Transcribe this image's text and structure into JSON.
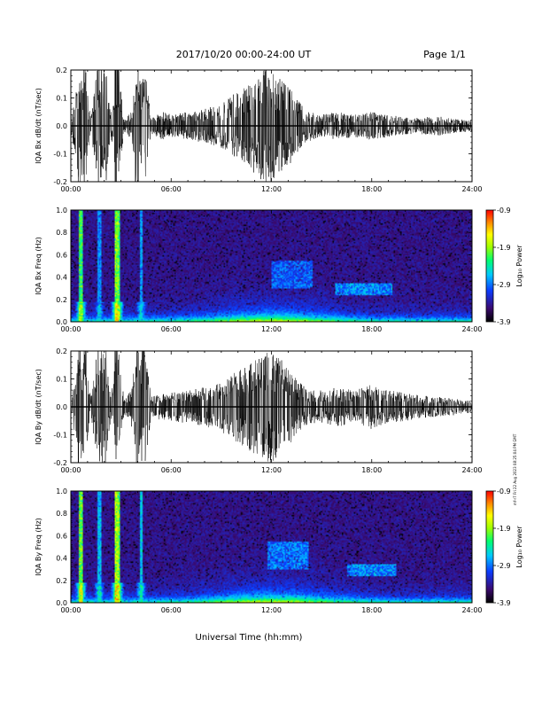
{
  "header": {
    "date_range": "2017/10/20  00:00-24:00 UT",
    "page": "Page 1/1"
  },
  "x_axis": {
    "title": "Universal Time (hh:mm)",
    "ticks": [
      "00:00",
      "06:00",
      "12:00",
      "18:00",
      "24:00"
    ],
    "range_hours": [
      0,
      24
    ]
  },
  "side_stamp": "mf-r7 Fri 22 Aug 2023 08:25:04 PM GMT",
  "colors": {
    "waveform": "#000000",
    "spectrogram_background": "#280b44",
    "colorbar": [
      "#000000",
      "#3a0a6e",
      "#0b3cff",
      "#00c8ff",
      "#00ff70",
      "#a0ff00",
      "#ffff00",
      "#ff8800",
      "#ff0000"
    ]
  },
  "chart_data": [
    {
      "type": "line",
      "id": "bx-dbdt",
      "ylabel": "IQA Bx dB/dt (nT/sec)",
      "yticks": [
        "0.2",
        "0.1",
        "0.0",
        "-0.1",
        "-0.2"
      ],
      "ylim": [
        -0.2,
        0.2
      ],
      "x_unit": "hours UT",
      "envelope": {
        "x": [
          0,
          0.5,
          0.8,
          1.2,
          1.6,
          2.0,
          2.4,
          2.8,
          3.2,
          3.6,
          4.0,
          4.4,
          4.8,
          5.5,
          6,
          7,
          8,
          9,
          9.5,
          10,
          10.5,
          11,
          11.5,
          12,
          12.5,
          13,
          13.5,
          14,
          14.5,
          15,
          16,
          17,
          18,
          19,
          20,
          21,
          22,
          23,
          24
        ],
        "y": [
          0.02,
          0.2,
          0.2,
          0.03,
          0.22,
          0.22,
          0.04,
          0.22,
          0.02,
          0.05,
          0.22,
          0.22,
          0.03,
          0.05,
          0.04,
          0.05,
          0.06,
          0.08,
          0.1,
          0.13,
          0.15,
          0.17,
          0.2,
          0.22,
          0.17,
          0.15,
          0.1,
          0.06,
          0.05,
          0.04,
          0.05,
          0.04,
          0.05,
          0.04,
          0.03,
          0.03,
          0.035,
          0.025,
          0.02
        ]
      },
      "burst_hours": [
        0.5,
        0.85,
        1.65,
        2.1,
        2.7,
        2.85,
        3.9,
        4.3
      ]
    },
    {
      "type": "heatmap",
      "id": "bx-freq",
      "ylabel": "IQA Bx Freq (Hz)",
      "yticks": [
        "1.0",
        "0.8",
        "0.6",
        "0.4",
        "0.2",
        "0.0"
      ],
      "ylim": [
        0.0,
        1.0
      ],
      "colorbar": {
        "label": "Log₁₀ Power",
        "ticks": [
          "-0.9",
          "-1.9",
          "-2.9",
          "-3.9"
        ],
        "range": [
          -3.9,
          -0.9
        ]
      },
      "features": [
        {
          "kind": "vertical-band",
          "hour": 0.6,
          "power": -1.5
        },
        {
          "kind": "vertical-band",
          "hour": 1.7,
          "power": -2.4
        },
        {
          "kind": "vertical-band",
          "hour": 2.75,
          "power": -1.2
        },
        {
          "kind": "vertical-band",
          "hour": 2.85,
          "power": -1.6
        },
        {
          "kind": "vertical-band",
          "hour": 4.2,
          "power": -2.3
        },
        {
          "kind": "patch",
          "hour_start": 12,
          "hour_end": 14.5,
          "freq_low": 0.3,
          "freq_high": 0.55,
          "power": -2.7
        },
        {
          "kind": "patch",
          "hour_start": 15.8,
          "hour_end": 19.2,
          "freq_low": 0.24,
          "freq_high": 0.34,
          "power": -2.5
        }
      ]
    },
    {
      "type": "line",
      "id": "by-dbdt",
      "ylabel": "IQA By dB/dt (nT/sec)",
      "yticks": [
        "0.2",
        "0.1",
        "0.0",
        "-0.1",
        "-0.2"
      ],
      "ylim": [
        -0.2,
        0.2
      ],
      "x_unit": "hours UT",
      "envelope": {
        "x": [
          0,
          0.5,
          0.8,
          1.2,
          1.6,
          2.0,
          2.4,
          2.8,
          3.2,
          3.6,
          4.0,
          4.4,
          4.8,
          5.5,
          6,
          7,
          8,
          9,
          9.5,
          10,
          10.5,
          11,
          11.5,
          12,
          12.5,
          13,
          13.5,
          14,
          14.5,
          15,
          16,
          17,
          18,
          19,
          20,
          21,
          22,
          23,
          24
        ],
        "y": [
          0.02,
          0.2,
          0.2,
          0.03,
          0.22,
          0.22,
          0.04,
          0.22,
          0.03,
          0.06,
          0.22,
          0.22,
          0.04,
          0.05,
          0.05,
          0.06,
          0.07,
          0.09,
          0.11,
          0.13,
          0.15,
          0.17,
          0.19,
          0.2,
          0.18,
          0.15,
          0.1,
          0.07,
          0.06,
          0.06,
          0.07,
          0.06,
          0.08,
          0.06,
          0.05,
          0.04,
          0.035,
          0.03,
          0.02
        ]
      },
      "burst_hours": [
        0.5,
        0.85,
        1.65,
        2.1,
        2.7,
        2.85,
        3.9,
        4.3
      ]
    },
    {
      "type": "heatmap",
      "id": "by-freq",
      "ylabel": "IQA By Freq (Hz)",
      "yticks": [
        "1.0",
        "0.8",
        "0.6",
        "0.4",
        "0.2",
        "0.0"
      ],
      "ylim": [
        0.0,
        1.0
      ],
      "colorbar": {
        "label": "Log₁₀ Power",
        "ticks": [
          "-0.9",
          "-1.9",
          "-2.9",
          "-3.9"
        ],
        "range": [
          -3.9,
          -0.9
        ]
      },
      "features": [
        {
          "kind": "vertical-band",
          "hour": 0.6,
          "power": -1.3
        },
        {
          "kind": "vertical-band",
          "hour": 1.7,
          "power": -2.2
        },
        {
          "kind": "vertical-band",
          "hour": 2.75,
          "power": -1.1
        },
        {
          "kind": "vertical-band",
          "hour": 2.85,
          "power": -1.5
        },
        {
          "kind": "vertical-band",
          "hour": 4.2,
          "power": -2.1
        },
        {
          "kind": "patch",
          "hour_start": 11.8,
          "hour_end": 14.2,
          "freq_low": 0.3,
          "freq_high": 0.55,
          "power": -2.6
        },
        {
          "kind": "patch",
          "hour_start": 16.5,
          "hour_end": 19.5,
          "freq_low": 0.24,
          "freq_high": 0.34,
          "power": -2.5
        }
      ]
    }
  ]
}
